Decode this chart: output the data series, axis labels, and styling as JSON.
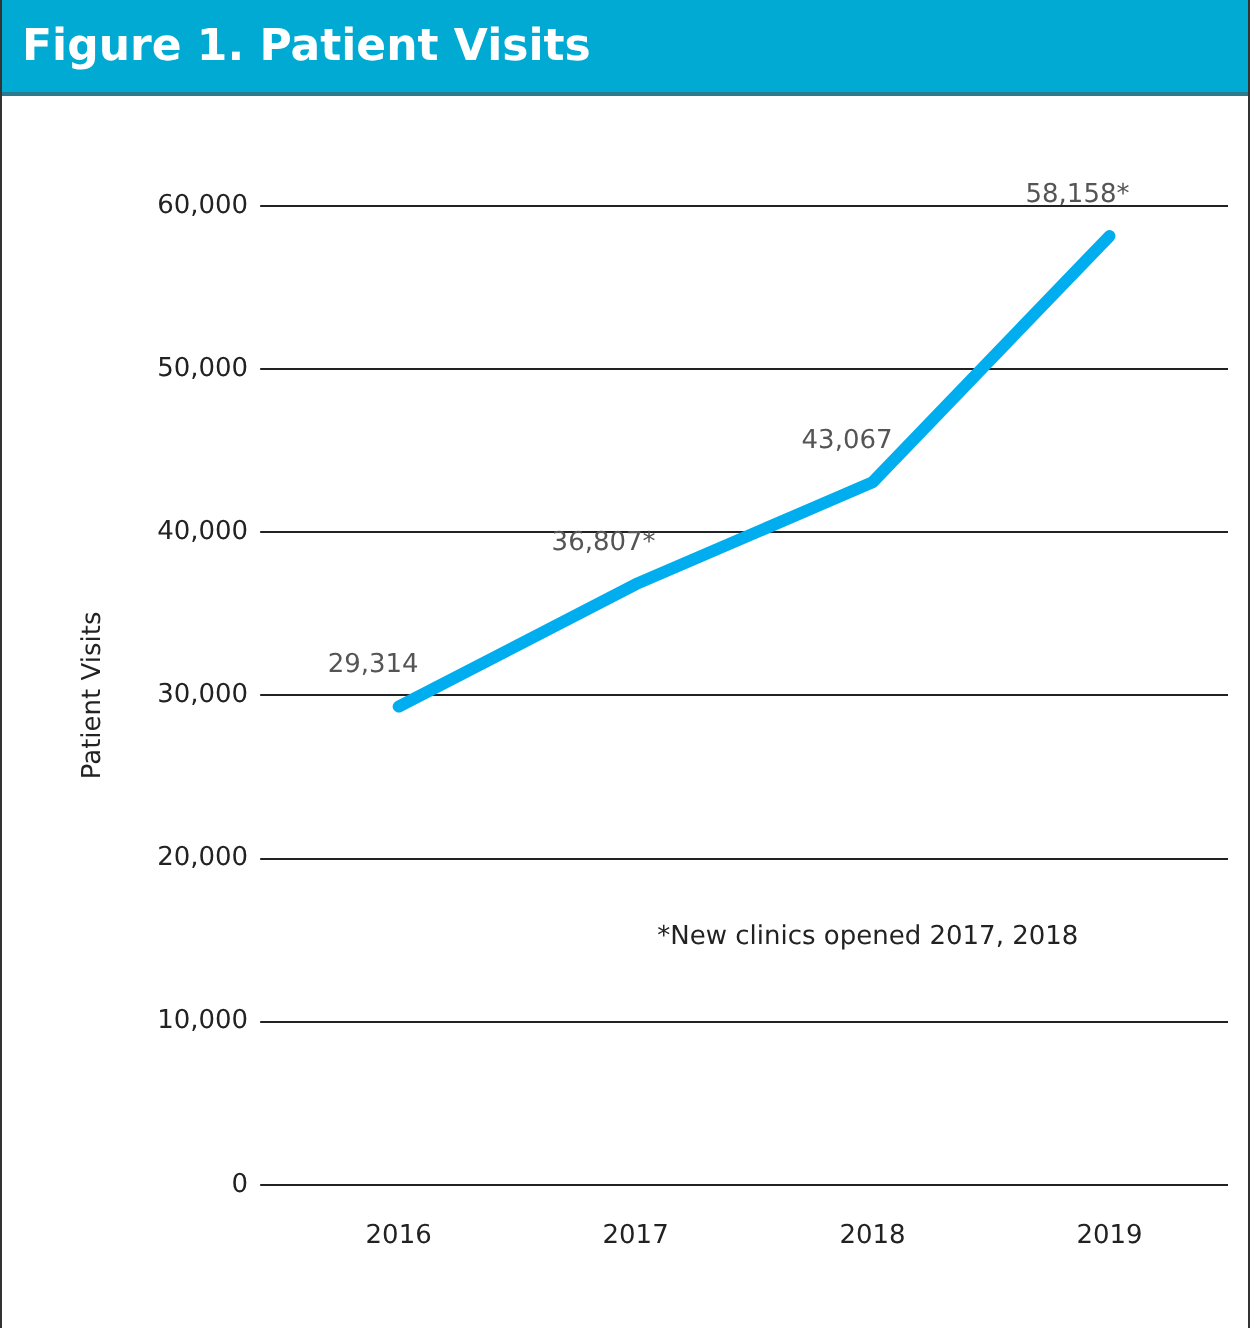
{
  "chart_data": {
    "type": "line",
    "title": "Figure 1. Patient Visits",
    "ylabel": "Patient Visits",
    "categories": [
      "2016",
      "2017",
      "2018",
      "2019"
    ],
    "series": [
      {
        "color": "#00aeef",
        "values": [
          29314,
          36807,
          43067,
          58158
        ],
        "value_labels": [
          "29,314",
          "36,807*",
          "43,067",
          "58,158*"
        ]
      }
    ],
    "ylim": [
      0,
      60000
    ],
    "yticks": [
      {
        "value": 0,
        "label": "0"
      },
      {
        "value": 10000,
        "label": "10,000"
      },
      {
        "value": 20000,
        "label": "20,000"
      },
      {
        "value": 30000,
        "label": "30,000"
      },
      {
        "value": 40000,
        "label": "40,000"
      },
      {
        "value": 50000,
        "label": "50,000"
      },
      {
        "value": 60000,
        "label": "60,000"
      }
    ],
    "grid": "y",
    "legend": false,
    "marker": "none",
    "line_style": "solid",
    "annotations": [
      "*New clinics opened 2017, 2018"
    ]
  }
}
